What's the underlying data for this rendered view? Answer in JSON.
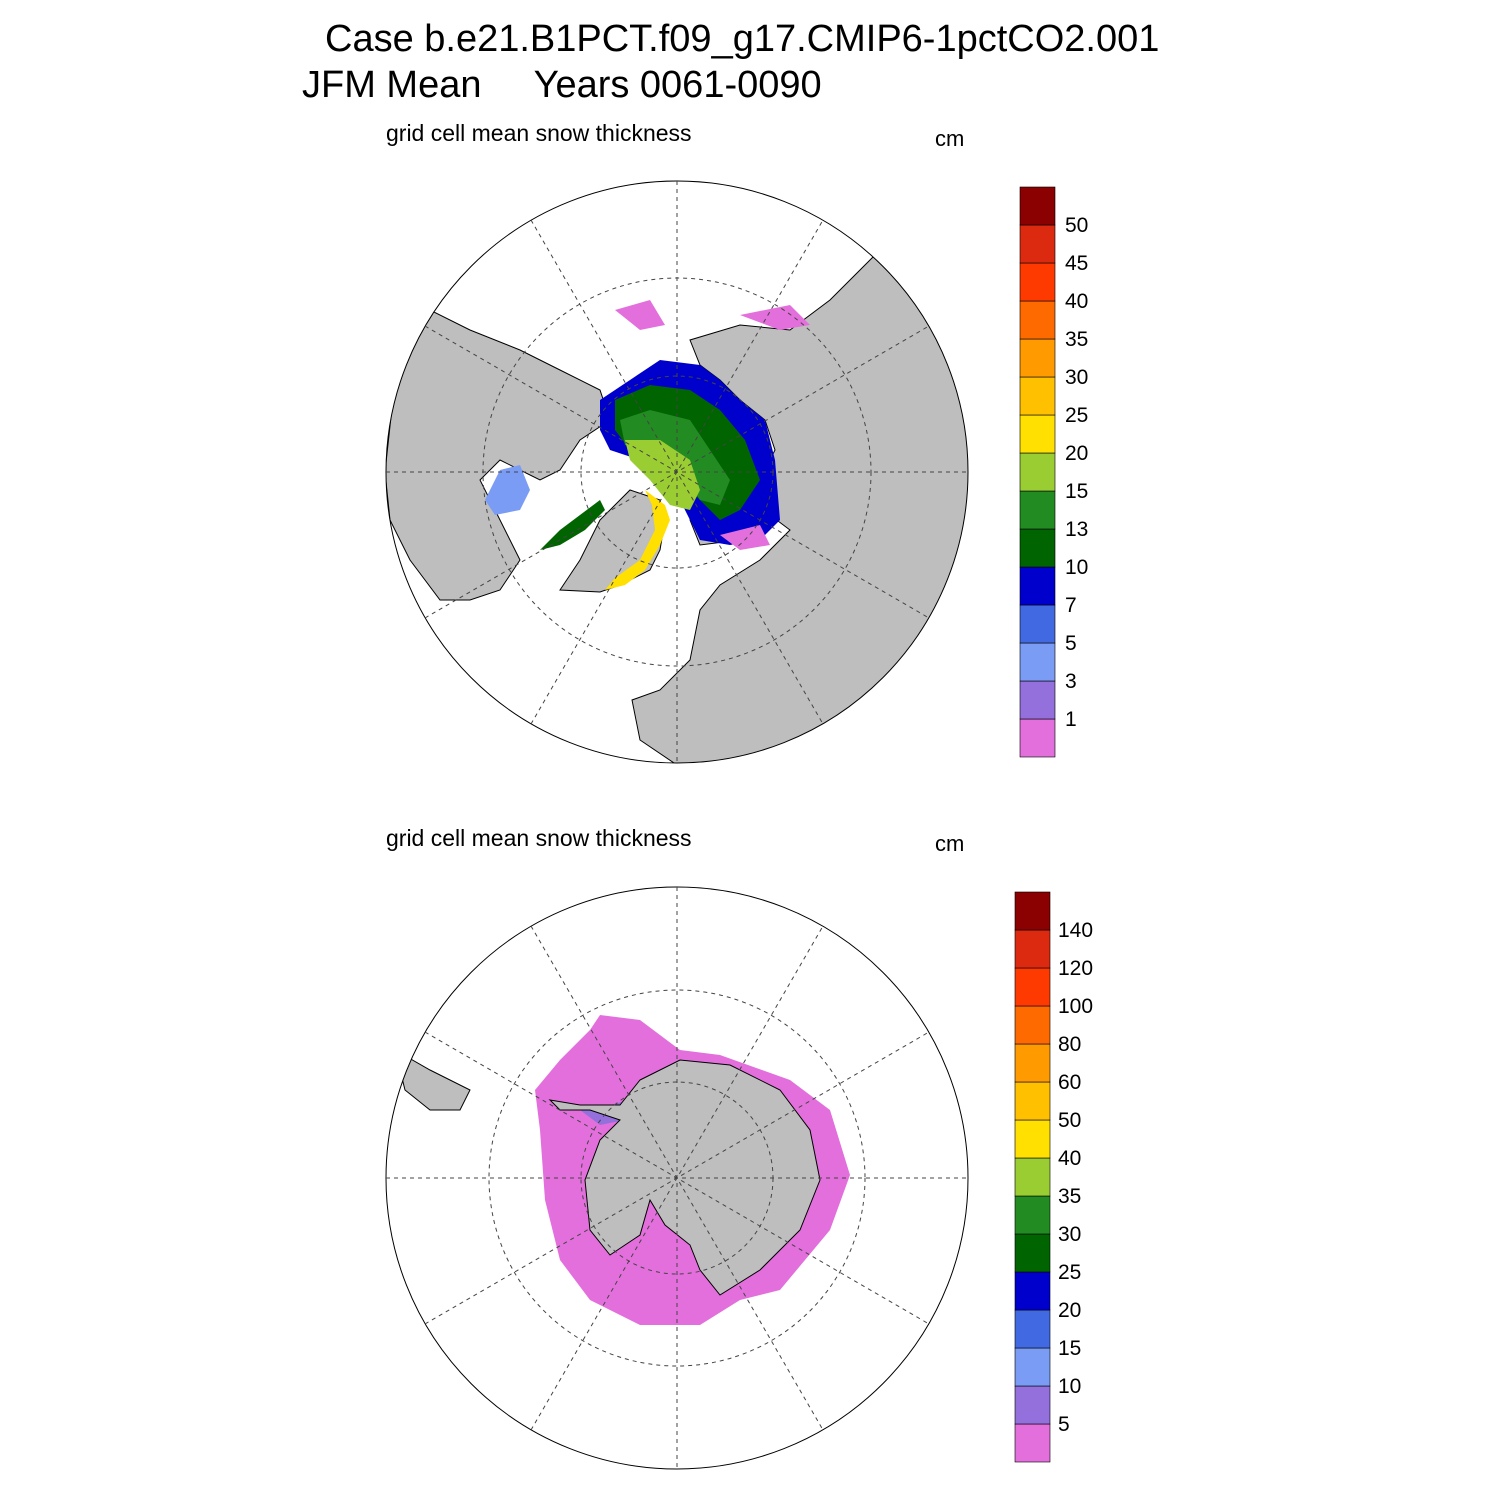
{
  "title": {
    "line1": "Case b.e21.B1PCT.f09_g17.CMIP6-1pctCO2.001",
    "line2": "JFM Mean     Years 0061-0090"
  },
  "panels": [
    {
      "id": "north",
      "subtitle": "grid cell mean snow thickness",
      "unit": "cm",
      "colorbar": {
        "labels": [
          "1",
          "3",
          "5",
          "7",
          "10",
          "13",
          "15",
          "20",
          "25",
          "30",
          "35",
          "40",
          "45",
          "50"
        ],
        "colors": [
          "#e36fdc",
          "#9370db",
          "#7b9cf5",
          "#4169e1",
          "#0000cd",
          "#006400",
          "#228b22",
          "#9acd32",
          "#ffe000",
          "#ffc000",
          "#ff9a00",
          "#ff6a00",
          "#ff3a00",
          "#dc2a10",
          "#8b0000"
        ]
      }
    },
    {
      "id": "south",
      "subtitle": "grid cell mean snow thickness",
      "unit": "cm",
      "colorbar": {
        "labels": [
          "5",
          "10",
          "15",
          "20",
          "25",
          "30",
          "35",
          "40",
          "50",
          "60",
          "80",
          "100",
          "120",
          "140"
        ],
        "colors": [
          "#e36fdc",
          "#9370db",
          "#7b9cf5",
          "#4169e1",
          "#0000cd",
          "#006400",
          "#228b22",
          "#9acd32",
          "#ffe000",
          "#ffc000",
          "#ff9a00",
          "#ff6a00",
          "#ff3a00",
          "#dc2a10",
          "#8b0000"
        ]
      }
    }
  ],
  "colors": {
    "land": "#bebebe",
    "ocean": "#ffffff"
  }
}
